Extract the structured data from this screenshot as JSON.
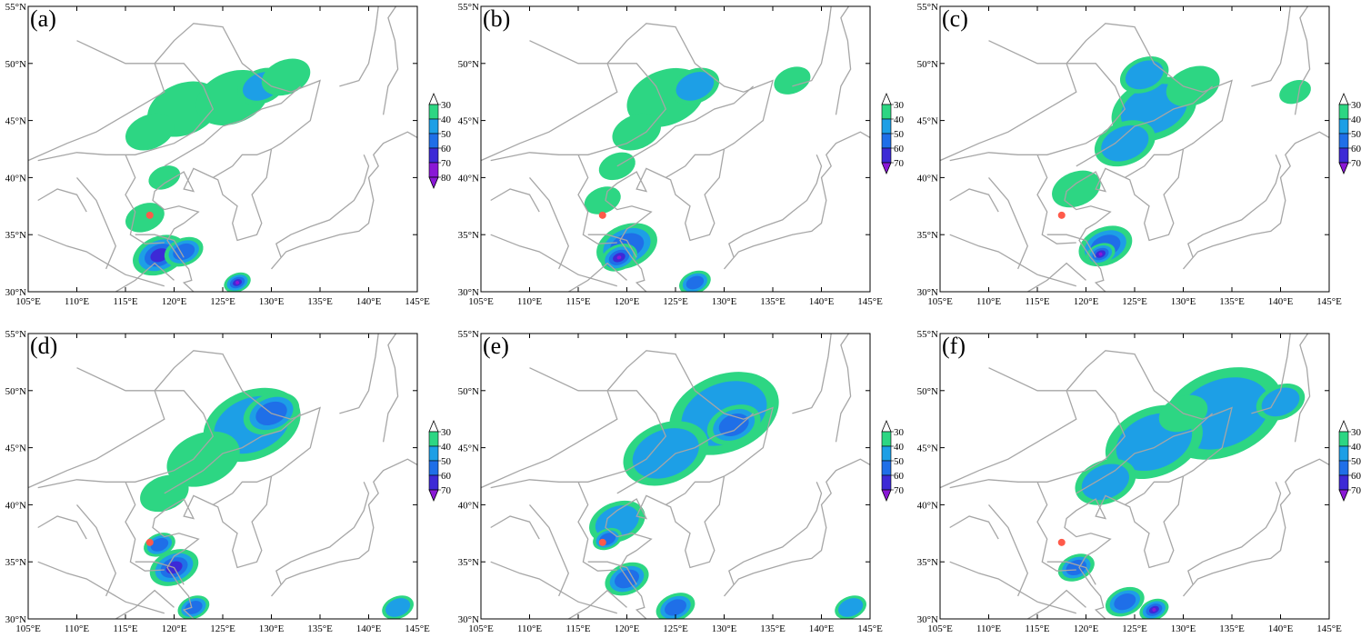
{
  "colors": {
    "border": "#a6a6a6",
    "station": "#ff5a4a",
    "levels": [
      "#2dd683",
      "#1d9fe6",
      "#1f6fe8",
      "#3d2ad6",
      "#8a18d6",
      "#8a18d6"
    ]
  },
  "axes": {
    "lon_ticks": [
      "105°E",
      "110°E",
      "115°E",
      "120°E",
      "125°E",
      "130°E",
      "135°E",
      "140°E",
      "145°E"
    ],
    "lat_ticks": [
      "30°N",
      "35°N",
      "40°N",
      "45°N",
      "50°N",
      "55°N"
    ],
    "lon_range": [
      105,
      145
    ],
    "lat_range": [
      30,
      55
    ]
  },
  "panels": [
    {
      "label": "(a)",
      "colorbar": [
        "30",
        "40",
        "50",
        "60",
        "70",
        "80"
      ],
      "cells": [
        {
          "lon": 118.5,
          "lat": 33.2,
          "r": 2.2,
          "lv": 3
        },
        {
          "lon": 121,
          "lat": 33.5,
          "r": 1.6,
          "lv": 2
        },
        {
          "lon": 126.5,
          "lat": 30.8,
          "r": 1.1,
          "lv": 4
        },
        {
          "lon": 117,
          "lat": 36.5,
          "r": 1.6,
          "lv": 0
        },
        {
          "lon": 121,
          "lat": 46,
          "r": 3,
          "lv": 0
        },
        {
          "lon": 126,
          "lat": 47,
          "r": 3,
          "lv": 0
        },
        {
          "lon": 129,
          "lat": 48,
          "r": 2,
          "lv": 1
        },
        {
          "lon": 117.5,
          "lat": 44,
          "r": 2,
          "lv": 0
        },
        {
          "lon": 131.5,
          "lat": 48.8,
          "r": 2,
          "lv": 0
        },
        {
          "lon": 119,
          "lat": 40,
          "r": 1.3,
          "lv": 0
        }
      ]
    },
    {
      "label": "(b)",
      "colorbar": [
        "30",
        "40",
        "50",
        "60",
        "70"
      ],
      "cells": [
        {
          "lon": 120,
          "lat": 34,
          "r": 2.5,
          "lv": 2
        },
        {
          "lon": 119.2,
          "lat": 33,
          "r": 1.5,
          "lv": 4
        },
        {
          "lon": 127,
          "lat": 30.8,
          "r": 1.3,
          "lv": 2
        },
        {
          "lon": 117.5,
          "lat": 38,
          "r": 1.5,
          "lv": 0
        },
        {
          "lon": 124,
          "lat": 47,
          "r": 3.2,
          "lv": 0
        },
        {
          "lon": 127,
          "lat": 48,
          "r": 2,
          "lv": 1
        },
        {
          "lon": 137,
          "lat": 48.5,
          "r": 1.5,
          "lv": 0
        },
        {
          "lon": 121,
          "lat": 44,
          "r": 2,
          "lv": 0
        },
        {
          "lon": 119,
          "lat": 41,
          "r": 1.5,
          "lv": 0
        }
      ]
    },
    {
      "label": "(c)",
      "colorbar": [
        "30",
        "40",
        "50",
        "60",
        "70"
      ],
      "cells": [
        {
          "lon": 122,
          "lat": 34,
          "r": 2.2,
          "lv": 2
        },
        {
          "lon": 121.5,
          "lat": 33.3,
          "r": 1.2,
          "lv": 4
        },
        {
          "lon": 127,
          "lat": 46,
          "r": 3.5,
          "lv": 1
        },
        {
          "lon": 124,
          "lat": 43,
          "r": 2.5,
          "lv": 1
        },
        {
          "lon": 131,
          "lat": 48,
          "r": 2.2,
          "lv": 0
        },
        {
          "lon": 119,
          "lat": 39,
          "r": 2,
          "lv": 0
        },
        {
          "lon": 126,
          "lat": 49,
          "r": 2,
          "lv": 1
        },
        {
          "lon": 141.5,
          "lat": 47.5,
          "r": 1.3,
          "lv": 0
        }
      ]
    },
    {
      "label": "(d)",
      "colorbar": [
        "30",
        "40",
        "50",
        "60",
        "70"
      ],
      "cells": [
        {
          "lon": 120,
          "lat": 34.5,
          "r": 2,
          "lv": 3
        },
        {
          "lon": 122,
          "lat": 31,
          "r": 1.3,
          "lv": 2
        },
        {
          "lon": 118.5,
          "lat": 36.5,
          "r": 1.3,
          "lv": 2
        },
        {
          "lon": 128,
          "lat": 47,
          "r": 4,
          "lv": 1
        },
        {
          "lon": 130,
          "lat": 48,
          "r": 2.3,
          "lv": 2
        },
        {
          "lon": 123,
          "lat": 44,
          "r": 3,
          "lv": 0
        },
        {
          "lon": 119,
          "lat": 41,
          "r": 2,
          "lv": 0
        },
        {
          "lon": 143,
          "lat": 31,
          "r": 1.3,
          "lv": 1
        }
      ]
    },
    {
      "label": "(e)",
      "colorbar": [
        "30",
        "40",
        "50",
        "60",
        "70"
      ],
      "cells": [
        {
          "lon": 120,
          "lat": 33.5,
          "r": 1.8,
          "lv": 2
        },
        {
          "lon": 125,
          "lat": 31,
          "r": 1.6,
          "lv": 2
        },
        {
          "lon": 130,
          "lat": 48,
          "r": 4.5,
          "lv": 1
        },
        {
          "lon": 124,
          "lat": 44.5,
          "r": 3.5,
          "lv": 1
        },
        {
          "lon": 131,
          "lat": 47,
          "r": 2.2,
          "lv": 2
        },
        {
          "lon": 119,
          "lat": 38.5,
          "r": 2.3,
          "lv": 1
        },
        {
          "lon": 118,
          "lat": 37,
          "r": 1.2,
          "lv": 2
        },
        {
          "lon": 143,
          "lat": 31,
          "r": 1.3,
          "lv": 1
        }
      ]
    },
    {
      "label": "(f)",
      "colorbar": [
        "30",
        "40",
        "50",
        "60",
        "70"
      ],
      "cells": [
        {
          "lon": 119,
          "lat": 34.5,
          "r": 1.5,
          "lv": 2
        },
        {
          "lon": 124,
          "lat": 31.5,
          "r": 1.6,
          "lv": 2
        },
        {
          "lon": 127,
          "lat": 30.8,
          "r": 1.2,
          "lv": 4
        },
        {
          "lon": 134,
          "lat": 48,
          "r": 5,
          "lv": 1
        },
        {
          "lon": 127,
          "lat": 45.5,
          "r": 4,
          "lv": 1
        },
        {
          "lon": 122,
          "lat": 42,
          "r": 2.5,
          "lv": 1
        },
        {
          "lon": 140,
          "lat": 49,
          "r": 2,
          "lv": 1
        },
        {
          "lon": 130,
          "lat": 48,
          "r": 2,
          "lv": 0
        }
      ]
    }
  ],
  "station": {
    "lon": 117.5,
    "lat": 36.7
  }
}
